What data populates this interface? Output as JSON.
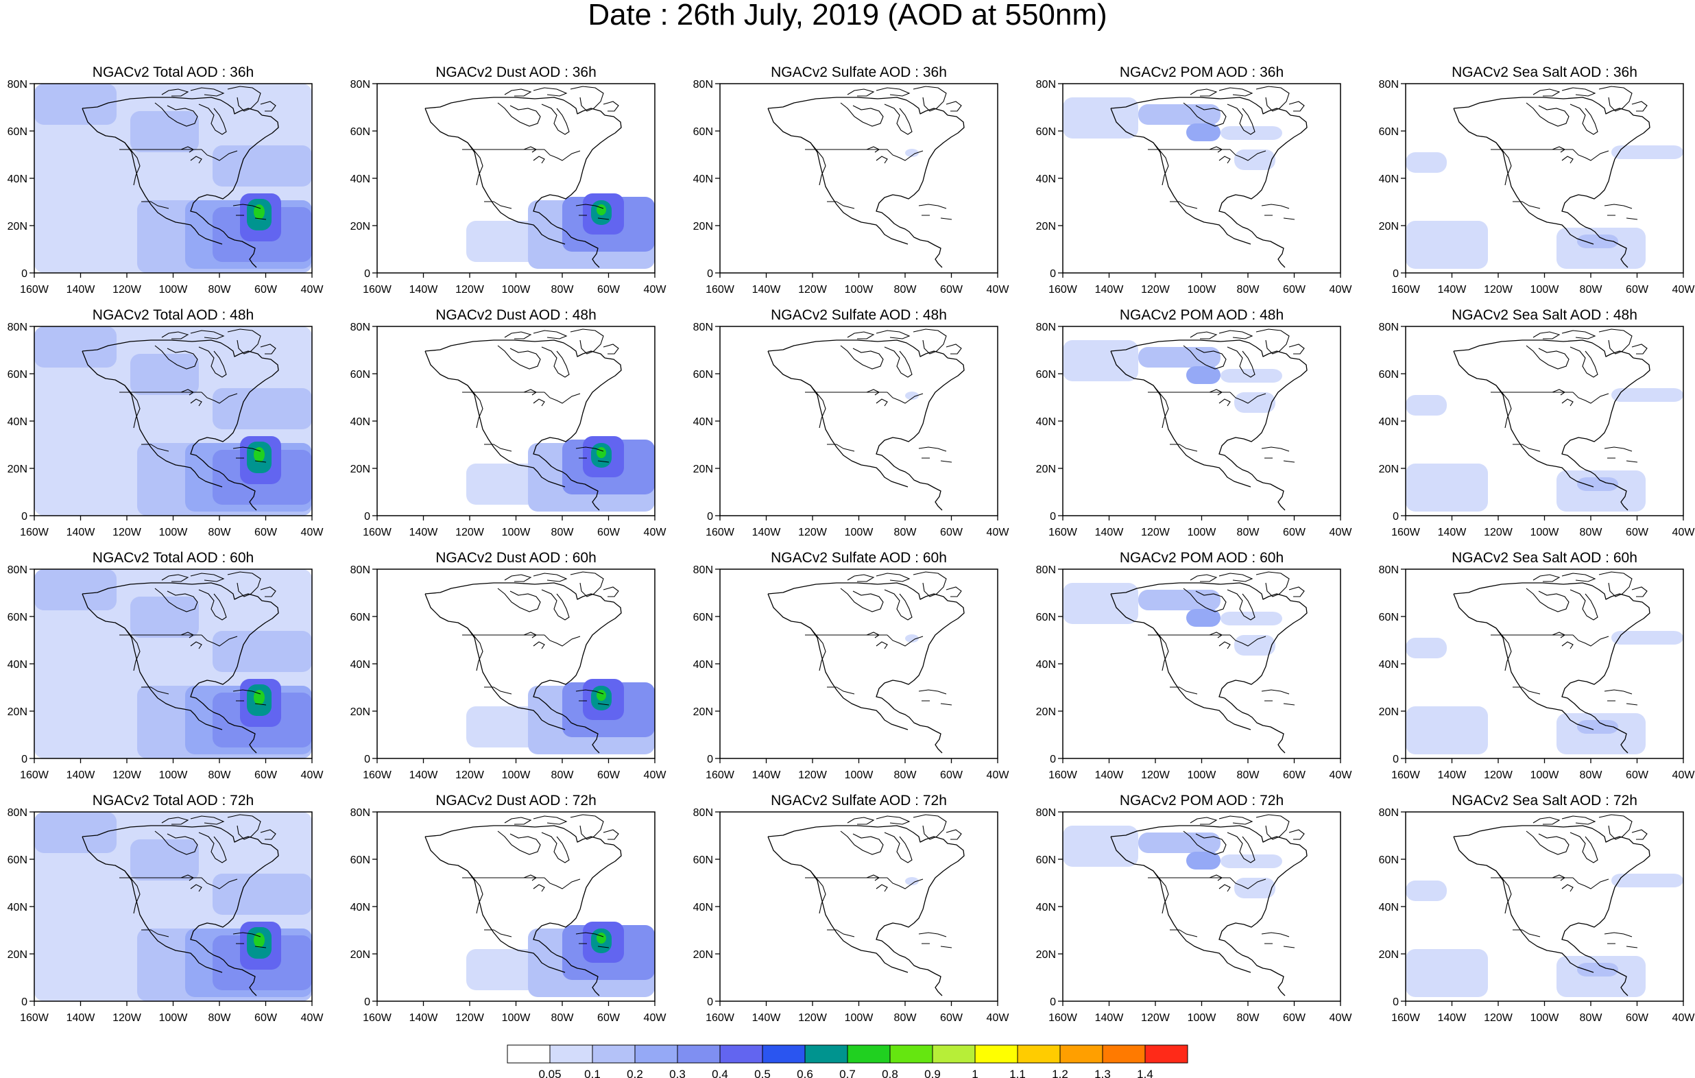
{
  "title": "Date : 26th July, 2019 (AOD at 550nm)",
  "panel_titles": [
    [
      "NGACv2 Total AOD : 36h",
      "NGACv2 Dust AOD : 36h",
      "NGACv2 Sulfate AOD : 36h",
      "NGACv2 POM AOD : 36h",
      "NGACv2 Sea Salt AOD : 36h"
    ],
    [
      "NGACv2 Total AOD : 48h",
      "NGACv2 Dust AOD : 48h",
      "NGACv2 Sulfate AOD : 48h",
      "NGACv2 POM AOD : 48h",
      "NGACv2 Sea Salt AOD : 48h"
    ],
    [
      "NGACv2 Total AOD : 60h",
      "NGACv2 Dust AOD : 60h",
      "NGACv2 Sulfate AOD : 60h",
      "NGACv2 POM AOD : 60h",
      "NGACv2 Sea Salt AOD : 60h"
    ],
    [
      "NGACv2 Total AOD : 72h",
      "NGACv2 Dust AOD : 72h",
      "NGACv2 Sulfate AOD : 72h",
      "NGACv2 POM AOD : 72h",
      "NGACv2 Sea Salt  AOD : 72h"
    ]
  ],
  "x_ticks": [
    "160W",
    "140W",
    "120W",
    "100W",
    "80W",
    "60W",
    "40W"
  ],
  "y_ticks": [
    "0",
    "20N",
    "40N",
    "60N",
    "80N"
  ],
  "colorbar": {
    "colors": [
      "#ffffff",
      "#d3dcfb",
      "#b4c2f8",
      "#95a9f6",
      "#7f8ff2",
      "#6265f0",
      "#2a55f0",
      "#00948f",
      "#20d020",
      "#65e610",
      "#b7ee38",
      "#ffff00",
      "#ffcc00",
      "#ff9f00",
      "#ff7a00",
      "#ff2a18"
    ],
    "labels": [
      "0.05",
      "0.1",
      "0.2",
      "0.3",
      "0.4",
      "0.5",
      "0.6",
      "0.7",
      "0.8",
      "0.9",
      "1",
      "1.1",
      "1.2",
      "1.3",
      "1.4"
    ]
  }
}
